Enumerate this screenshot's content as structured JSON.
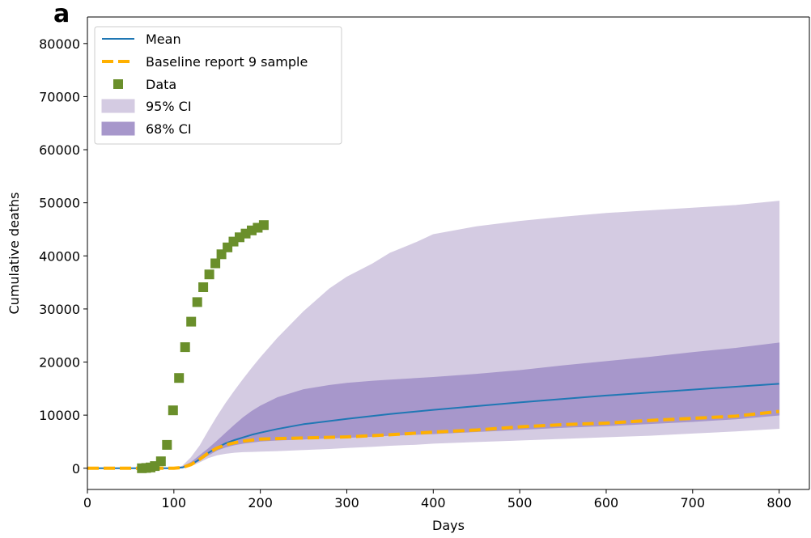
{
  "panel_label": "a",
  "chart_data": {
    "type": "line",
    "xlabel": "Days",
    "ylabel": "Cumulative deaths",
    "xlim": [
      0,
      835
    ],
    "ylim": [
      -4000,
      85000
    ],
    "x_ticks": [
      0,
      100,
      200,
      300,
      400,
      500,
      600,
      700,
      800
    ],
    "y_ticks": [
      0,
      10000,
      20000,
      30000,
      40000,
      50000,
      60000,
      70000,
      80000
    ],
    "grid": false,
    "legend_position": "top-left",
    "colors": {
      "mean": "#1f77b4",
      "baseline": "#ffb000",
      "data": "#6a8f2b",
      "ci95": "#d4cbe2",
      "ci68": "#a797cb"
    },
    "series": [
      {
        "name": "Mean",
        "kind": "line",
        "x": [
          0,
          100,
          110,
          120,
          130,
          140,
          150,
          160,
          170,
          180,
          190,
          200,
          220,
          250,
          300,
          350,
          400,
          500,
          600,
          700,
          800
        ],
        "y": [
          0,
          0,
          150,
          700,
          1700,
          2900,
          3900,
          4700,
          5300,
          5800,
          6300,
          6700,
          7400,
          8300,
          9300,
          10200,
          11000,
          12400,
          13700,
          14800,
          15900
        ]
      },
      {
        "name": "Baseline report 9 sample",
        "kind": "dashed-line",
        "x": [
          0,
          100,
          110,
          120,
          130,
          140,
          150,
          160,
          170,
          180,
          190,
          200,
          250,
          300,
          350,
          400,
          450,
          500,
          550,
          600,
          650,
          700,
          750,
          800
        ],
        "y": [
          0,
          0,
          150,
          700,
          1700,
          2900,
          3800,
          4400,
          4800,
          5100,
          5300,
          5500,
          5700,
          5900,
          6300,
          6800,
          7200,
          7800,
          8200,
          8500,
          9000,
          9400,
          9800,
          10700
        ]
      },
      {
        "name": "Data",
        "kind": "scatter",
        "x": [
          63,
          68,
          73,
          78,
          85,
          92,
          99,
          106,
          113,
          120,
          127,
          134,
          141,
          148,
          155,
          162,
          169,
          176,
          183,
          190,
          197,
          204
        ],
        "y": [
          0,
          50,
          150,
          400,
          1300,
          4400,
          10900,
          17000,
          22800,
          27600,
          31300,
          34100,
          36500,
          38600,
          40300,
          41600,
          42700,
          43500,
          44200,
          44800,
          45300,
          45800
        ]
      },
      {
        "name": "95% CI",
        "kind": "band",
        "x": [
          0,
          100,
          110,
          120,
          130,
          140,
          150,
          160,
          170,
          180,
          190,
          200,
          220,
          250,
          280,
          300,
          330,
          350,
          380,
          400,
          450,
          500,
          550,
          600,
          650,
          700,
          750,
          800
        ],
        "lower": [
          0,
          0,
          80,
          500,
          1200,
          2000,
          2500,
          2800,
          3000,
          3100,
          3150,
          3200,
          3300,
          3500,
          3700,
          3900,
          4100,
          4300,
          4500,
          4700,
          5000,
          5300,
          5600,
          5900,
          6200,
          6600,
          7000,
          7500
        ],
        "upper": [
          0,
          0,
          400,
          2000,
          4200,
          7000,
          9700,
          12200,
          14500,
          16700,
          18800,
          20800,
          24500,
          29500,
          33800,
          36000,
          38500,
          40500,
          42500,
          44000,
          45500,
          46500,
          47300,
          48000,
          48500,
          49000,
          49500,
          50300
        ]
      },
      {
        "name": "68% CI",
        "kind": "band",
        "x": [
          0,
          100,
          110,
          120,
          130,
          140,
          150,
          160,
          170,
          180,
          190,
          200,
          220,
          250,
          280,
          300,
          330,
          350,
          400,
          450,
          500,
          550,
          600,
          650,
          700,
          750,
          800
        ],
        "lower": [
          0,
          0,
          100,
          600,
          1500,
          2500,
          3400,
          4000,
          4400,
          4700,
          4900,
          5100,
          5300,
          5500,
          5700,
          5800,
          6000,
          6200,
          6500,
          6900,
          7300,
          7700,
          8000,
          8400,
          8800,
          9300,
          10000
        ],
        "upper": [
          0,
          0,
          250,
          1100,
          2400,
          3700,
          5100,
          6600,
          8100,
          9500,
          10700,
          11700,
          13300,
          14800,
          15600,
          16000,
          16400,
          16600,
          17100,
          17700,
          18400,
          19300,
          20100,
          20900,
          21800,
          22600,
          23600
        ]
      }
    ]
  }
}
